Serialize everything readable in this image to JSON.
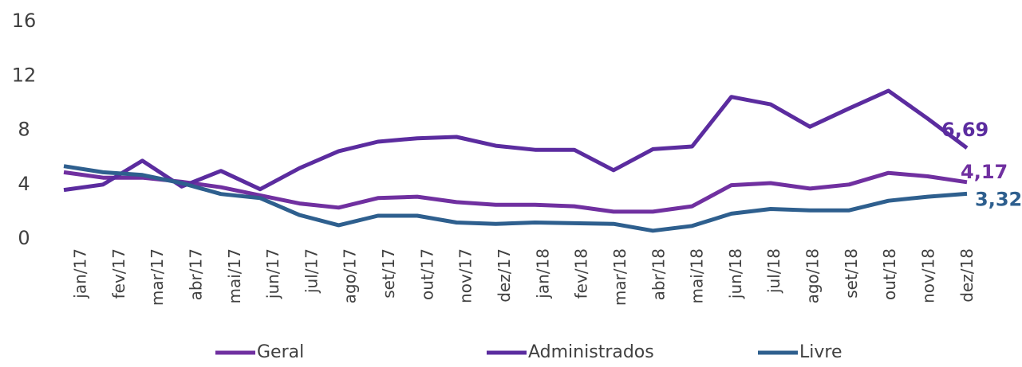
{
  "chart_data": {
    "type": "line",
    "categories": [
      "jan/17",
      "fev/17",
      "mar/17",
      "abr/17",
      "mai/17",
      "jun/17",
      "jul/17",
      "ago/17",
      "set/17",
      "out/17",
      "nov/17",
      "dez/17",
      "jan/18",
      "fev/18",
      "mar/18",
      "abr/18",
      "mai/18",
      "jun/18",
      "jul/18",
      "ago/18",
      "set/18",
      "out/18",
      "nov/18",
      "dez/18"
    ],
    "series": [
      {
        "name": "Geral",
        "color": "#7030a0",
        "values": [
          4.9,
          4.5,
          4.5,
          4.2,
          3.8,
          3.2,
          2.6,
          2.3,
          3.0,
          3.1,
          2.7,
          2.5,
          2.5,
          2.4,
          2.0,
          2.0,
          2.4,
          3.95,
          4.1,
          3.7,
          4.0,
          4.85,
          4.6,
          4.17
        ],
        "value_labels": [
          null,
          null,
          null,
          null,
          null,
          null,
          null,
          null,
          null,
          null,
          null,
          null,
          null,
          null,
          null,
          null,
          null,
          null,
          null,
          null,
          null,
          null,
          null,
          "4,17"
        ]
      },
      {
        "name": "Administrados",
        "color": "#5b2c9f",
        "values": [
          3.6,
          4.0,
          5.75,
          3.85,
          5.0,
          3.65,
          5.2,
          6.45,
          7.15,
          7.4,
          7.5,
          6.85,
          6.55,
          6.55,
          5.05,
          6.6,
          6.8,
          10.45,
          9.9,
          8.25,
          9.6,
          10.9,
          8.85,
          6.69
        ],
        "value_labels": [
          null,
          null,
          null,
          null,
          null,
          null,
          null,
          null,
          null,
          null,
          null,
          null,
          null,
          null,
          null,
          null,
          null,
          null,
          null,
          null,
          null,
          null,
          null,
          "6,69"
        ]
      },
      {
        "name": "Livre",
        "color": "#2e5f8e",
        "values": [
          5.35,
          4.9,
          4.7,
          4.1,
          3.3,
          3.0,
          1.75,
          1.0,
          1.7,
          1.7,
          1.2,
          1.1,
          1.2,
          1.15,
          1.1,
          0.6,
          0.95,
          1.85,
          2.2,
          2.1,
          2.1,
          2.8,
          3.1,
          3.32
        ],
        "value_labels": [
          null,
          null,
          null,
          null,
          null,
          null,
          null,
          null,
          null,
          null,
          null,
          null,
          null,
          null,
          null,
          null,
          null,
          null,
          null,
          null,
          null,
          null,
          null,
          "3,32"
        ]
      }
    ],
    "ylim": [
      0,
      16
    ],
    "yticks": [
      0,
      4,
      8,
      12,
      16
    ],
    "grid": false,
    "legend": "bottom"
  }
}
